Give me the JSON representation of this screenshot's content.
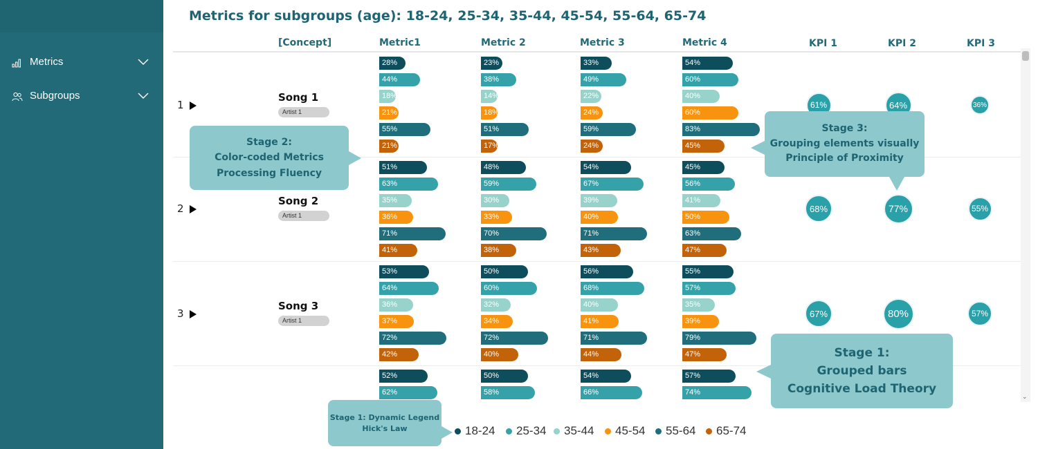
{
  "sidebar": {
    "items": [
      {
        "label": "Metrics",
        "icon": "bar-chart-icon"
      },
      {
        "label": "Subgroups",
        "icon": "users-icon"
      }
    ]
  },
  "title": "Metrics for subgroups (age): 18-24, 25-34, 35-44, 45-54, 55-64,  65-74",
  "columns": {
    "concept": "[Concept]",
    "metric1": "Metric1",
    "metric2": "Metric 2",
    "metric3": "Metric 3",
    "metric4": "Metric 4",
    "kpi1": "KPI 1",
    "kpi2": "KPI 2",
    "kpi3": "KPI 3"
  },
  "colors": {
    "18-24": "#0e4d5c",
    "25-34": "#35a2aa",
    "35-44": "#97d3cb",
    "45-54": "#f7930f",
    "55-64": "#206e7b",
    "65-74": "#c2630a",
    "kpi": "#2aa0a8",
    "callout": "#8cc8cc"
  },
  "rows": [
    {
      "index": "1",
      "song": "Song 1",
      "artist": "Artist 1",
      "metrics": [
        [
          "28%",
          "44%",
          "18%",
          "21%",
          "55%",
          "21%"
        ],
        [
          "23%",
          "38%",
          "14%",
          "18%",
          "51%",
          "17%"
        ],
        [
          "33%",
          "49%",
          "22%",
          "24%",
          "59%",
          "24%"
        ],
        [
          "54%",
          "60%",
          "40%",
          "60%",
          "83%",
          "45%"
        ]
      ],
      "kpis": [
        "61%",
        "64%",
        "36%"
      ]
    },
    {
      "index": "2",
      "song": "Song 2",
      "artist": "Artist 1",
      "metrics": [
        [
          "51%",
          "63%",
          "35%",
          "36%",
          "71%",
          "41%"
        ],
        [
          "48%",
          "59%",
          "30%",
          "33%",
          "70%",
          "38%"
        ],
        [
          "54%",
          "67%",
          "39%",
          "40%",
          "71%",
          "43%"
        ],
        [
          "45%",
          "56%",
          "41%",
          "50%",
          "63%",
          "47%"
        ]
      ],
      "kpis": [
        "68%",
        "77%",
        "55%"
      ]
    },
    {
      "index": "3",
      "song": "Song 3",
      "artist": "Artist 1",
      "metrics": [
        [
          "53%",
          "64%",
          "36%",
          "37%",
          "72%",
          "42%"
        ],
        [
          "50%",
          "60%",
          "32%",
          "34%",
          "72%",
          "40%"
        ],
        [
          "56%",
          "68%",
          "40%",
          "41%",
          "71%",
          "44%"
        ],
        [
          "55%",
          "57%",
          "35%",
          "39%",
          "79%",
          "47%"
        ]
      ],
      "kpis": [
        "67%",
        "80%",
        "57%"
      ]
    },
    {
      "index": "",
      "song": "",
      "artist": "",
      "metrics": [
        [
          "52%",
          "62%"
        ],
        [
          "50%",
          "58%"
        ],
        [
          "54%",
          "66%"
        ],
        [
          "57%",
          "74%"
        ]
      ],
      "kpis": []
    }
  ],
  "callouts": {
    "stage2": [
      "Stage 2:",
      "Color-coded Metrics",
      "Processing Fluency"
    ],
    "stage3": [
      "Stage 3:",
      "Grouping elements visually",
      "Principle of Proximity"
    ],
    "stage1": [
      "Stage 1:",
      "Grouped bars",
      "Cognitive Load Theory"
    ],
    "legend": [
      "Stage 1:  Dynamic Legend",
      "Hick's Law"
    ]
  },
  "legend": [
    "18-24",
    "25-34",
    "35-44",
    "45-54",
    "55-64",
    "65-74"
  ]
}
